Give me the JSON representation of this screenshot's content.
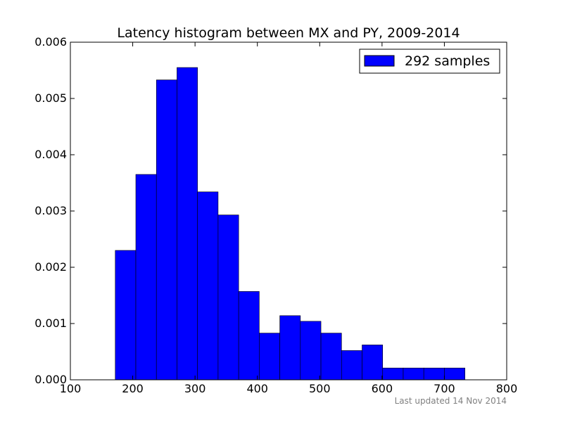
{
  "chart_data": {
    "type": "bar",
    "title": "Latency histogram between MX and PY, 2009-2014",
    "xlabel": "",
    "ylabel": "",
    "xlim": [
      100,
      800
    ],
    "ylim": [
      0,
      0.006
    ],
    "x_ticks": [
      "100",
      "200",
      "300",
      "400",
      "500",
      "600",
      "700",
      "800"
    ],
    "y_ticks": [
      "0.000",
      "0.001",
      "0.002",
      "0.003",
      "0.004",
      "0.005",
      "0.006"
    ],
    "bin_edges": [
      172,
      205,
      238,
      271,
      304,
      337,
      370,
      403,
      436,
      469,
      502,
      535,
      568,
      601,
      634,
      667,
      700,
      733
    ],
    "series": [
      {
        "name": "292 samples",
        "values": [
          0.0023,
          0.00365,
          0.00533,
          0.00555,
          0.00334,
          0.00293,
          0.00157,
          0.00083,
          0.00114,
          0.00104,
          0.00083,
          0.00052,
          0.00062,
          0.00021,
          0.00021,
          0.00021,
          0.00021
        ]
      }
    ],
    "legend_position": "top-right",
    "grid": false,
    "colors": {
      "bar_fill": "#0000ff",
      "bar_edge": "#000000"
    },
    "footnote": "Last updated 14 Nov 2014"
  }
}
